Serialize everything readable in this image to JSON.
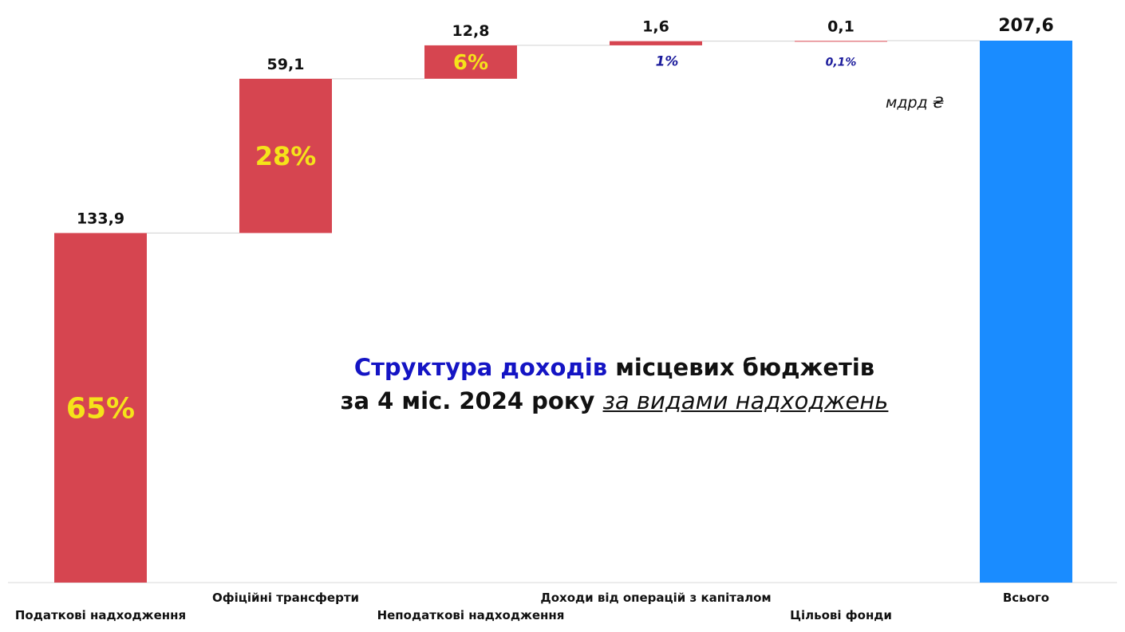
{
  "chart_data": {
    "type": "bar",
    "subtype": "waterfall",
    "unit": "мдрд ₴",
    "categories": [
      "Податкові надходження",
      "Офіційні трансферти",
      "Неподаткові надходження",
      "Доходи від операцій з капіталом",
      "Цільові фонди",
      "Всього"
    ],
    "values": [
      133.9,
      59.1,
      12.8,
      1.6,
      0.1,
      207.6
    ],
    "value_labels": [
      "133,9",
      "59,1",
      "12,8",
      "1,6",
      "0,1",
      "207,6"
    ],
    "share_labels": [
      "65%",
      "28%",
      "6%",
      "1%",
      "0,1%",
      ""
    ],
    "ylim": [
      0,
      207.6
    ],
    "grid": false,
    "colors": {
      "component": "#d64550",
      "total": "#1a8cff",
      "share_large": "#f5e31a",
      "share_small": "#1c1c9c",
      "title_accent": "#1414c4"
    }
  },
  "title": {
    "accent": "Структура доходів",
    "rest1": " місцевих бюджетів",
    "line2": "за 4 міс. 2024 року ",
    "line2_italic": "за видами надходжень"
  }
}
